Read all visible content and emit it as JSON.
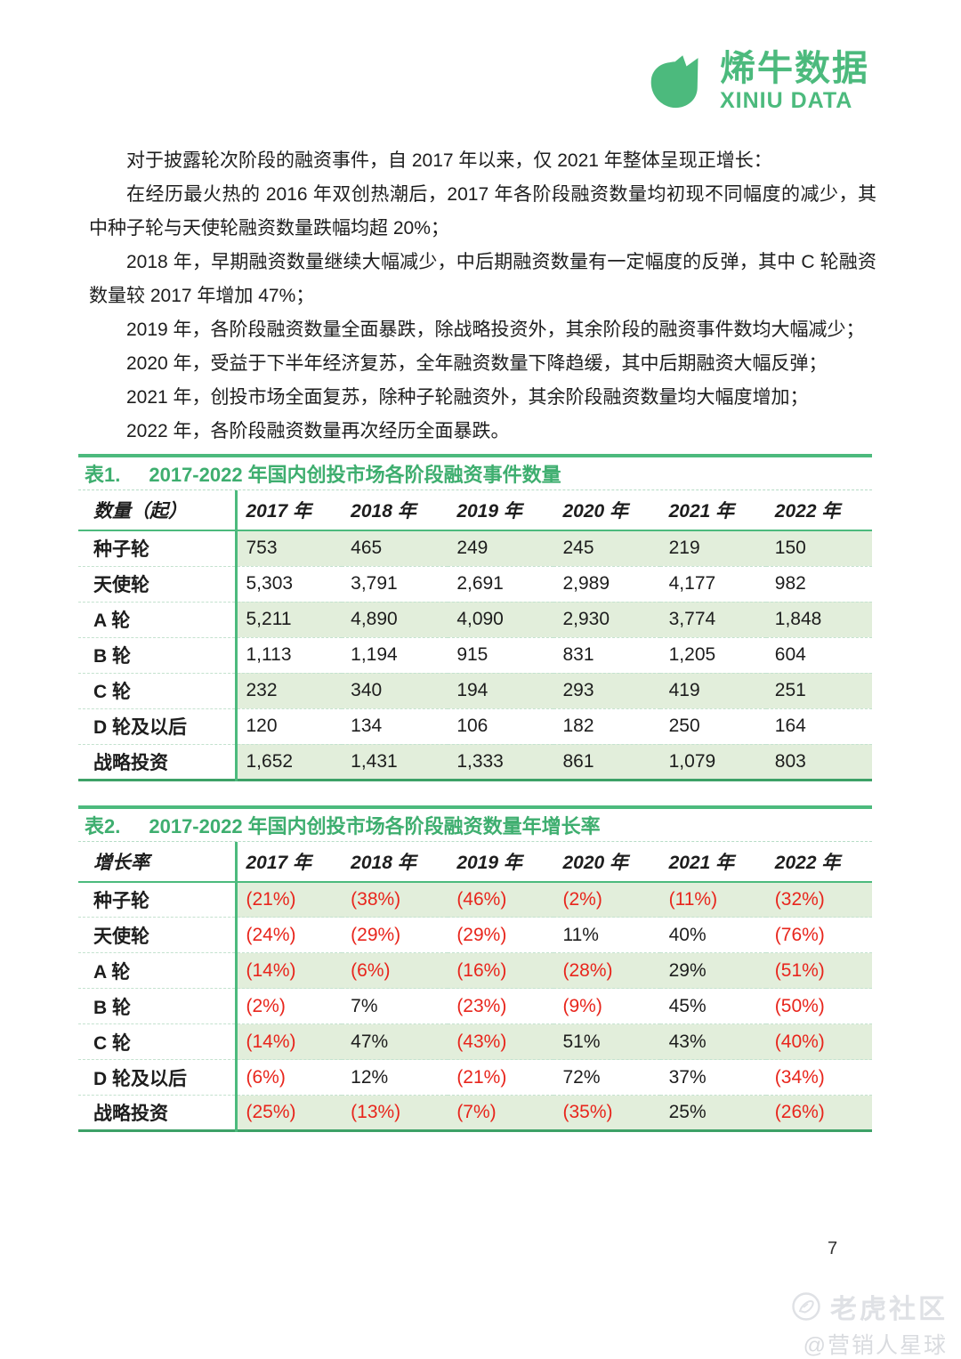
{
  "logo": {
    "icon": "rhino-icon",
    "name_cn": "烯牛数据",
    "name_en": "XINIU DATA"
  },
  "paragraphs": [
    "对于披露轮次阶段的融资事件，自 2017 年以来，仅 2021 年整体呈现正增长：",
    "在经历最火热的 2016 年双创热潮后，2017 年各阶段融资数量均初现不同幅度的减少，其中种子轮与天使轮融资数量跌幅均超 20%；",
    "2018 年，早期融资数量继续大幅减少，中后期融资数量有一定幅度的反弹，其中 C 轮融资数量较 2017 年增加 47%；",
    "2019 年，各阶段融资数量全面暴跌，除战略投资外，其余阶段的融资事件数均大幅减少；",
    "2020 年，受益于下半年经济复苏，全年融资数量下降趋缓，其中后期融资大幅反弹；",
    "2021 年，创投市场全面复苏，除种子轮融资外，其余阶段融资数量均大幅度增加；",
    "2022 年，各阶段融资数量再次经历全面暴跌。"
  ],
  "tables": [
    {
      "tag": "表1.",
      "title": "2017-2022 年国内创投市场各阶段融资事件数量",
      "first_col_header": "数量（起）",
      "year_headers": [
        "2017 年",
        "2018 年",
        "2019 年",
        "2020 年",
        "2021 年",
        "2022 年"
      ],
      "rows": [
        {
          "label": "种子轮",
          "values": [
            "753",
            "465",
            "249",
            "245",
            "219",
            "150"
          ]
        },
        {
          "label": "天使轮",
          "values": [
            "5,303",
            "3,791",
            "2,691",
            "2,989",
            "4,177",
            "982"
          ]
        },
        {
          "label": "A 轮",
          "values": [
            "5,211",
            "4,890",
            "4,090",
            "2,930",
            "3,774",
            "1,848"
          ]
        },
        {
          "label": "B 轮",
          "values": [
            "1,113",
            "1,194",
            "915",
            "831",
            "1,205",
            "604"
          ]
        },
        {
          "label": "C 轮",
          "values": [
            "232",
            "340",
            "194",
            "293",
            "419",
            "251"
          ]
        },
        {
          "label": "D 轮及以后",
          "values": [
            "120",
            "134",
            "106",
            "182",
            "250",
            "164"
          ]
        },
        {
          "label": "战略投资",
          "values": [
            "1,652",
            "1,431",
            "1,333",
            "861",
            "1,079",
            "803"
          ]
        }
      ]
    },
    {
      "tag": "表2.",
      "title": "2017-2022 年国内创投市场各阶段融资数量年增长率",
      "first_col_header": "增长率",
      "year_headers": [
        "2017 年",
        "2018 年",
        "2019 年",
        "2020 年",
        "2021 年",
        "2022 年"
      ],
      "negative_format": "parentheses-red",
      "rows": [
        {
          "label": "种子轮",
          "values": [
            "(21%)",
            "(38%)",
            "(46%)",
            "(2%)",
            "(11%)",
            "(32%)"
          ]
        },
        {
          "label": "天使轮",
          "values": [
            "(24%)",
            "(29%)",
            "(29%)",
            "11%",
            "40%",
            "(76%)"
          ]
        },
        {
          "label": "A 轮",
          "values": [
            "(14%)",
            "(6%)",
            "(16%)",
            "(28%)",
            "29%",
            "(51%)"
          ]
        },
        {
          "label": "B 轮",
          "values": [
            "(2%)",
            "7%",
            "(23%)",
            "(9%)",
            "45%",
            "(50%)"
          ]
        },
        {
          "label": "C 轮",
          "values": [
            "(14%)",
            "47%",
            "(43%)",
            "51%",
            "43%",
            "(40%)"
          ]
        },
        {
          "label": "D 轮及以后",
          "values": [
            "(6%)",
            "12%",
            "(21%)",
            "72%",
            "37%",
            "(34%)"
          ]
        },
        {
          "label": "战略投资",
          "values": [
            "(25%)",
            "(13%)",
            "(7%)",
            "(35%)",
            "25%",
            "(26%)"
          ]
        }
      ]
    }
  ],
  "footer": {
    "page_number": "7",
    "watermark": {
      "icon": "tiger-circle-icon",
      "line1": "老虎社区",
      "line2": "@营销人星球"
    }
  },
  "colors": {
    "brand_green": "#4cba7d",
    "title_green": "#3eae6f",
    "row_green": "#e2eedb",
    "negative_red": "#e8251c",
    "text": "#1d1d1d",
    "watermark_gray": "#dfe1e5"
  }
}
